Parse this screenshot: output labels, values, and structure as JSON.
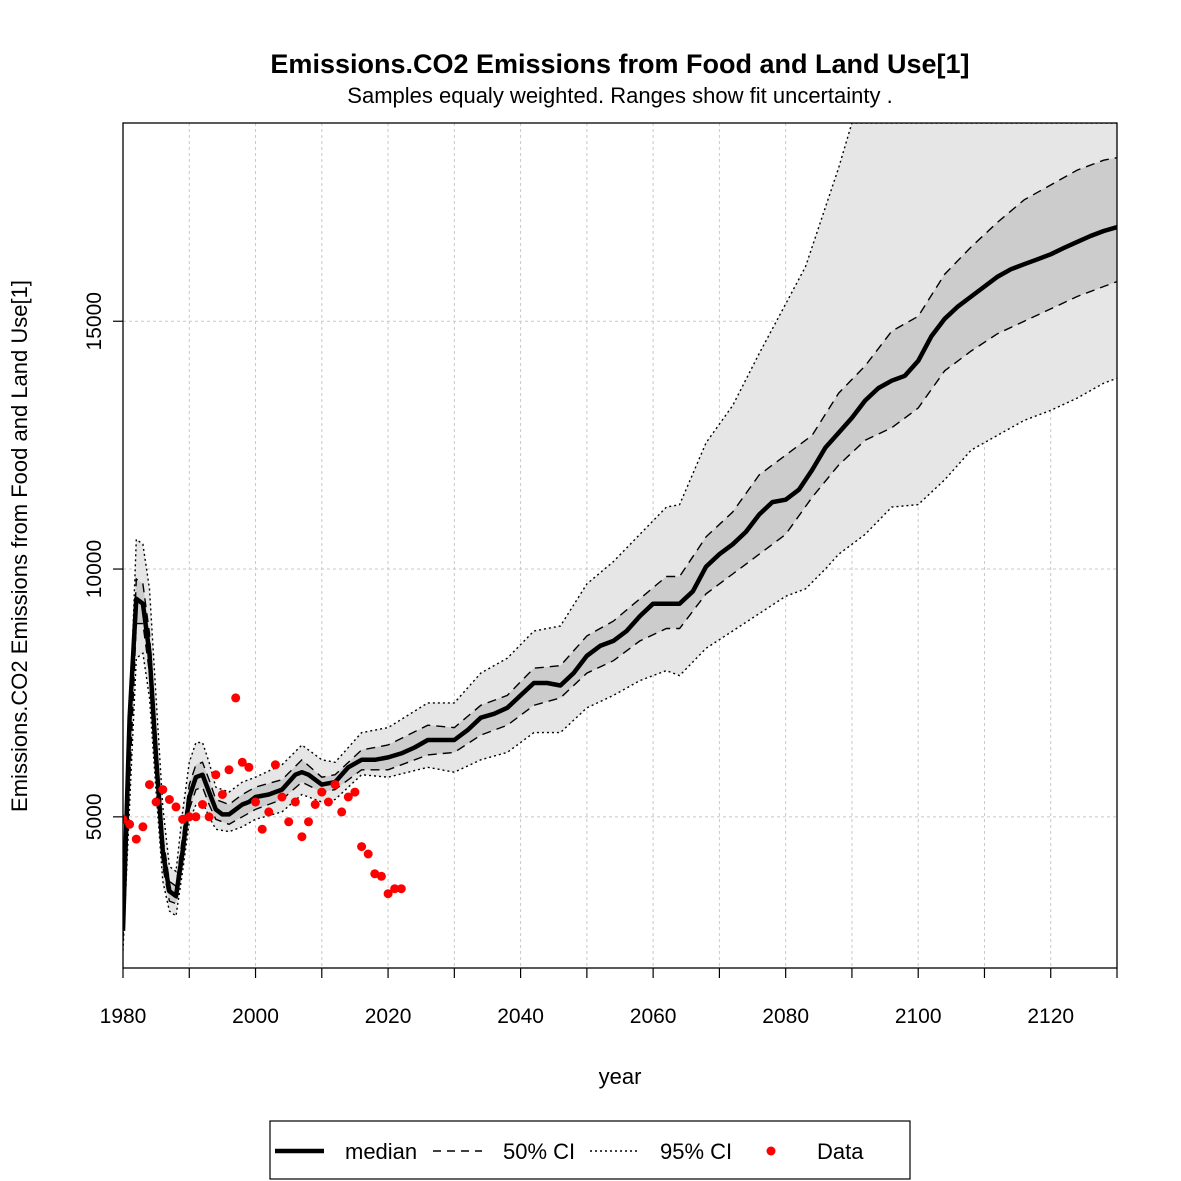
{
  "chart_data": {
    "type": "line",
    "title": "Emissions.CO2 Emissions from Food and Land Use[1]",
    "subtitle": "Samples equaly weighted. Ranges show  fit uncertainty .",
    "xlabel": "year",
    "ylabel": "Emissions.CO2 Emissions from Food and Land Use[1]",
    "xlim": [
      1980,
      2130
    ],
    "ylim": [
      1950,
      19000
    ],
    "xticks": [
      1980,
      2000,
      2020,
      2040,
      2060,
      2080,
      2100,
      2120
    ],
    "xticks_minor": [
      1990,
      2010,
      2030,
      2050,
      2070,
      2090,
      2110,
      2130
    ],
    "yticks": [
      5000,
      10000,
      15000
    ],
    "grid": true,
    "legend_position": "bottom",
    "legend": [
      {
        "label": "median",
        "style": "solid-thick"
      },
      {
        "label": "50% CI",
        "style": "dashed"
      },
      {
        "label": "95% CI",
        "style": "dotted"
      },
      {
        "label": "Data",
        "style": "point"
      }
    ],
    "colors": {
      "median": "#000000",
      "band50": "#cccccc",
      "band95": "#e6e6e6",
      "data": "#ff0000",
      "grid": "#c8c8c8"
    },
    "series": [
      {
        "name": "median",
        "x": [
          1980,
          1981,
          1982,
          1983,
          1984,
          1985,
          1986,
          1987,
          1988,
          1989,
          1990,
          1991,
          1992,
          1993,
          1994,
          1995,
          1996,
          1997,
          1998,
          1999,
          2000,
          2002,
          2004,
          2006,
          2007,
          2008,
          2010,
          2012,
          2014,
          2016,
          2018,
          2020,
          2022,
          2024,
          2026,
          2028,
          2030,
          2032,
          2034,
          2036,
          2038,
          2040,
          2042,
          2044,
          2046,
          2048,
          2050,
          2052,
          2054,
          2056,
          2058,
          2060,
          2062,
          2064,
          2066,
          2068,
          2070,
          2072,
          2074,
          2076,
          2078,
          2080,
          2082,
          2084,
          2086,
          2088,
          2090,
          2092,
          2094,
          2096,
          2098,
          2100,
          2102,
          2104,
          2106,
          2108,
          2110,
          2112,
          2114,
          2116,
          2118,
          2120,
          2122,
          2124,
          2126,
          2128,
          2130
        ],
        "y": [
          2700,
          7000,
          9400,
          9300,
          8300,
          6200,
          4300,
          3500,
          3400,
          4300,
          5400,
          5800,
          5850,
          5500,
          5150,
          5050,
          5050,
          5150,
          5250,
          5300,
          5400,
          5450,
          5550,
          5850,
          5900,
          5850,
          5650,
          5700,
          6000,
          6150,
          6150,
          6200,
          6280,
          6400,
          6550,
          6550,
          6550,
          6750,
          7000,
          7080,
          7200,
          7450,
          7700,
          7700,
          7650,
          7900,
          8250,
          8450,
          8550,
          8750,
          9050,
          9300,
          9300,
          9300,
          9550,
          10050,
          10300,
          10500,
          10750,
          11100,
          11350,
          11400,
          11600,
          12000,
          12450,
          12750,
          13050,
          13400,
          13650,
          13800,
          13900,
          14200,
          14700,
          15050,
          15300,
          15500,
          15700,
          15900,
          16050,
          16150,
          16250,
          16350,
          16480,
          16600,
          16720,
          16820,
          16900
        ]
      },
      {
        "name": "50% CI",
        "x": [
          1980,
          1982,
          1983,
          1984,
          1985,
          1986,
          1987,
          1988,
          1989,
          1990,
          1991,
          1992,
          1993,
          1994,
          1996,
          1998,
          2000,
          2004,
          2007,
          2010,
          2012,
          2016,
          2020,
          2026,
          2030,
          2034,
          2038,
          2042,
          2046,
          2050,
          2054,
          2058,
          2062,
          2064,
          2068,
          2072,
          2076,
          2080,
          2084,
          2088,
          2092,
          2096,
          2100,
          2104,
          2108,
          2112,
          2116,
          2120,
          2124,
          2128,
          2130
        ],
        "y_low": [
          2500,
          8900,
          8900,
          7900,
          5800,
          4000,
          3300,
          3250,
          4100,
          5150,
          5550,
          5600,
          5250,
          4950,
          4850,
          5000,
          5150,
          5350,
          5700,
          5500,
          5550,
          5950,
          5950,
          6250,
          6300,
          6650,
          6850,
          7250,
          7400,
          7900,
          8150,
          8550,
          8800,
          8800,
          9500,
          9900,
          10300,
          10700,
          11450,
          12100,
          12600,
          12850,
          13250,
          14000,
          14400,
          14750,
          15000,
          15250,
          15500,
          15700,
          15800
        ],
        "y_high": [
          3000,
          9800,
          9700,
          8700,
          6500,
          4600,
          3700,
          3600,
          4600,
          5650,
          6050,
          6100,
          5750,
          5350,
          5250,
          5450,
          5600,
          5750,
          6150,
          5800,
          5850,
          6350,
          6450,
          6850,
          6800,
          7250,
          7450,
          8000,
          8050,
          8650,
          8950,
          9400,
          9850,
          9850,
          10650,
          11150,
          11900,
          12300,
          12700,
          13550,
          14100,
          14800,
          15100,
          15950,
          16500,
          17000,
          17450,
          17750,
          18050,
          18250,
          18300
        ]
      },
      {
        "name": "95% CI",
        "x": [
          1980,
          1982,
          1983,
          1984,
          1985,
          1986,
          1987,
          1988,
          1989,
          1990,
          1991,
          1992,
          1993,
          1994,
          1996,
          1998,
          2000,
          2004,
          2007,
          2010,
          2012,
          2016,
          2020,
          2026,
          2030,
          2034,
          2038,
          2042,
          2046,
          2050,
          2054,
          2058,
          2062,
          2064,
          2068,
          2072,
          2076,
          2080,
          2083,
          2086,
          2088,
          2090,
          2092,
          2096,
          2100,
          2104,
          2108,
          2112,
          2116,
          2120,
          2124,
          2128,
          2130
        ],
        "y_low": [
          2300,
          8200,
          8300,
          7400,
          5500,
          3700,
          3100,
          3000,
          3900,
          4900,
          5250,
          5300,
          5000,
          4750,
          4700,
          4800,
          4950,
          5100,
          5450,
          5300,
          5350,
          5850,
          5800,
          6000,
          5900,
          6150,
          6300,
          6700,
          6700,
          7200,
          7450,
          7750,
          7950,
          7850,
          8400,
          8750,
          9100,
          9450,
          9600,
          10000,
          10300,
          10500,
          10700,
          11250,
          11300,
          11800,
          12400,
          12700,
          13000,
          13200,
          13450,
          13750,
          13850
        ],
        "y_high": [
          3300,
          10600,
          10500,
          9600,
          7400,
          5200,
          4000,
          3900,
          5100,
          6100,
          6500,
          6500,
          6100,
          5600,
          5500,
          5700,
          5800,
          6050,
          6450,
          6150,
          6100,
          6700,
          6800,
          7300,
          7300,
          7900,
          8200,
          8750,
          8850,
          9700,
          10150,
          10700,
          11250,
          11300,
          12550,
          13300,
          14350,
          15350,
          16100,
          17300,
          18100,
          19000,
          19000,
          19000,
          19000,
          19000,
          19000,
          19000,
          19000,
          19000,
          19000,
          19000,
          19000
        ]
      },
      {
        "name": "Data",
        "x": [
          1980,
          1981,
          1982,
          1983,
          1984,
          1985,
          1986,
          1987,
          1988,
          1989,
          1990,
          1991,
          1992,
          1993,
          1994,
          1995,
          1996,
          1997,
          1998,
          1999,
          2000,
          2001,
          2002,
          2003,
          2004,
          2005,
          2006,
          2007,
          2008,
          2009,
          2010,
          2011,
          2012,
          2013,
          2014,
          2015,
          2016,
          2017,
          2018,
          2019,
          2020,
          2021,
          2022
        ],
        "y": [
          4950,
          4850,
          4550,
          4800,
          5650,
          5300,
          5550,
          5350,
          5200,
          4950,
          5000,
          5000,
          5250,
          5000,
          5850,
          5450,
          5950,
          7400,
          6100,
          6000,
          5300,
          4750,
          5100,
          6050,
          5400,
          4900,
          5300,
          4600,
          4900,
          5250,
          5500,
          5300,
          5650,
          5100,
          5400,
          5500,
          4400,
          4250,
          3850,
          3800,
          3450,
          3550,
          3550
        ]
      }
    ]
  }
}
